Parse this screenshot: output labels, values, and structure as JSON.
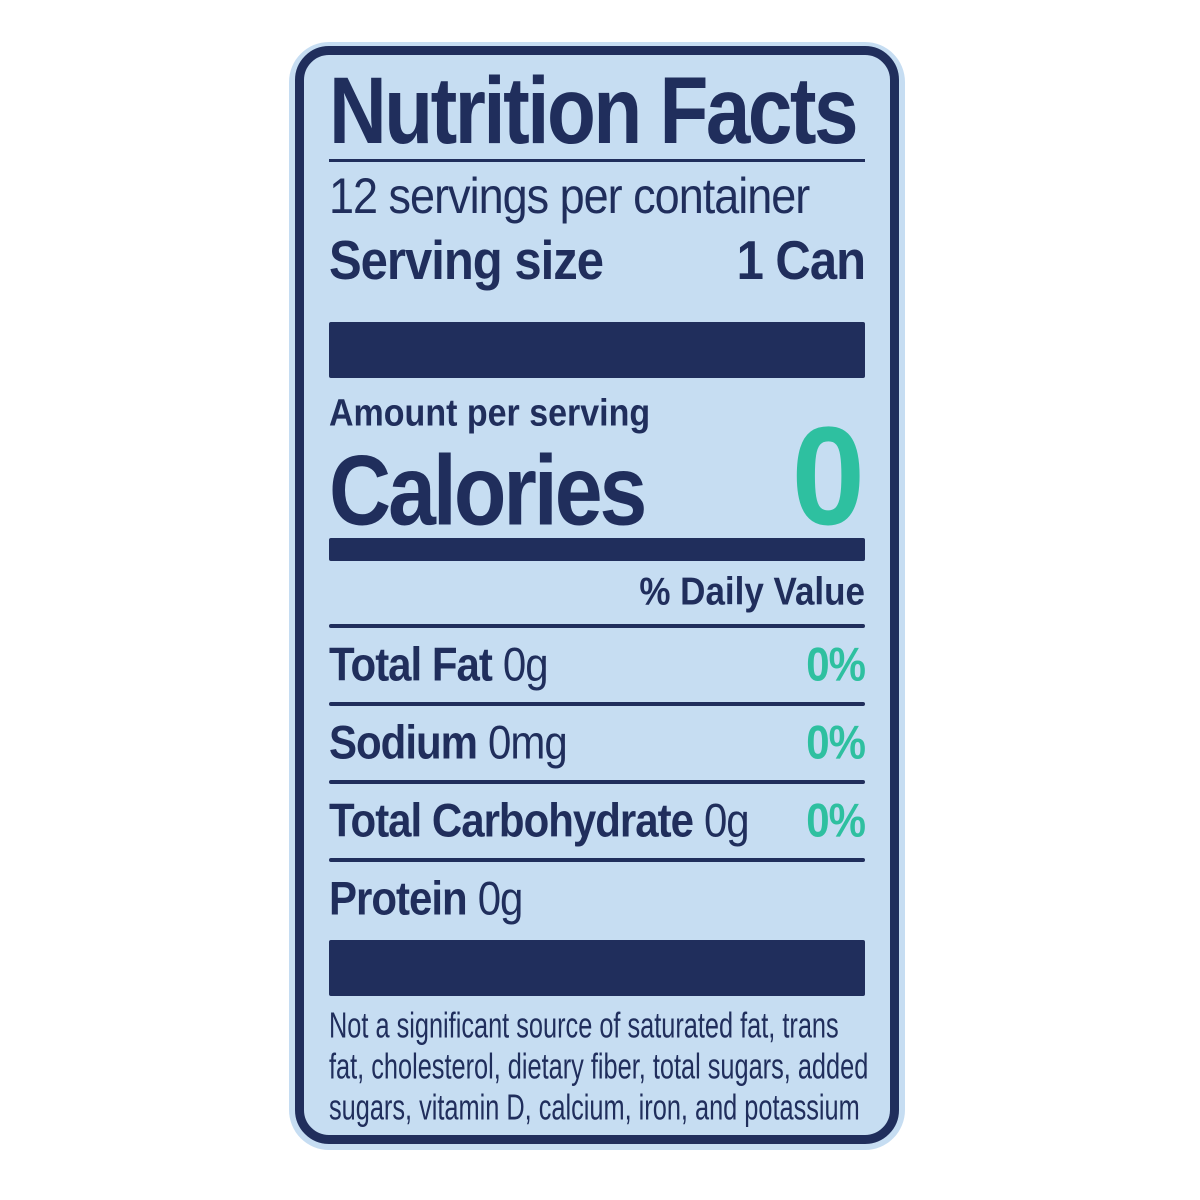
{
  "label": {
    "title": "Nutrition Facts",
    "servings_per_container": "12 servings per container",
    "serving_size_label": "Serving size",
    "serving_size_value": "1 Can",
    "amount_per_serving": "Amount per serving",
    "calories_label": "Calories",
    "calories_value": "0",
    "daily_value_header": "% Daily Value",
    "rows": [
      {
        "name": "Total Fat",
        "amount": "0g",
        "dv": "0%"
      },
      {
        "name": "Sodium",
        "amount": "0mg",
        "dv": "0%"
      },
      {
        "name": "Total Carbohydrate",
        "amount": "0g",
        "dv": "0%"
      },
      {
        "name": "Protein",
        "amount": "0g",
        "dv": ""
      }
    ],
    "footnote": "Not a significant source of saturated fat, trans\nfat, cholesterol, dietary fiber, total sugars, added\nsugars, vitamin D, calcium, iron, and potassium",
    "colors": {
      "navy": "#202e5c",
      "teal": "#2ec0a0",
      "label_bg": "#c6ddf2"
    }
  }
}
